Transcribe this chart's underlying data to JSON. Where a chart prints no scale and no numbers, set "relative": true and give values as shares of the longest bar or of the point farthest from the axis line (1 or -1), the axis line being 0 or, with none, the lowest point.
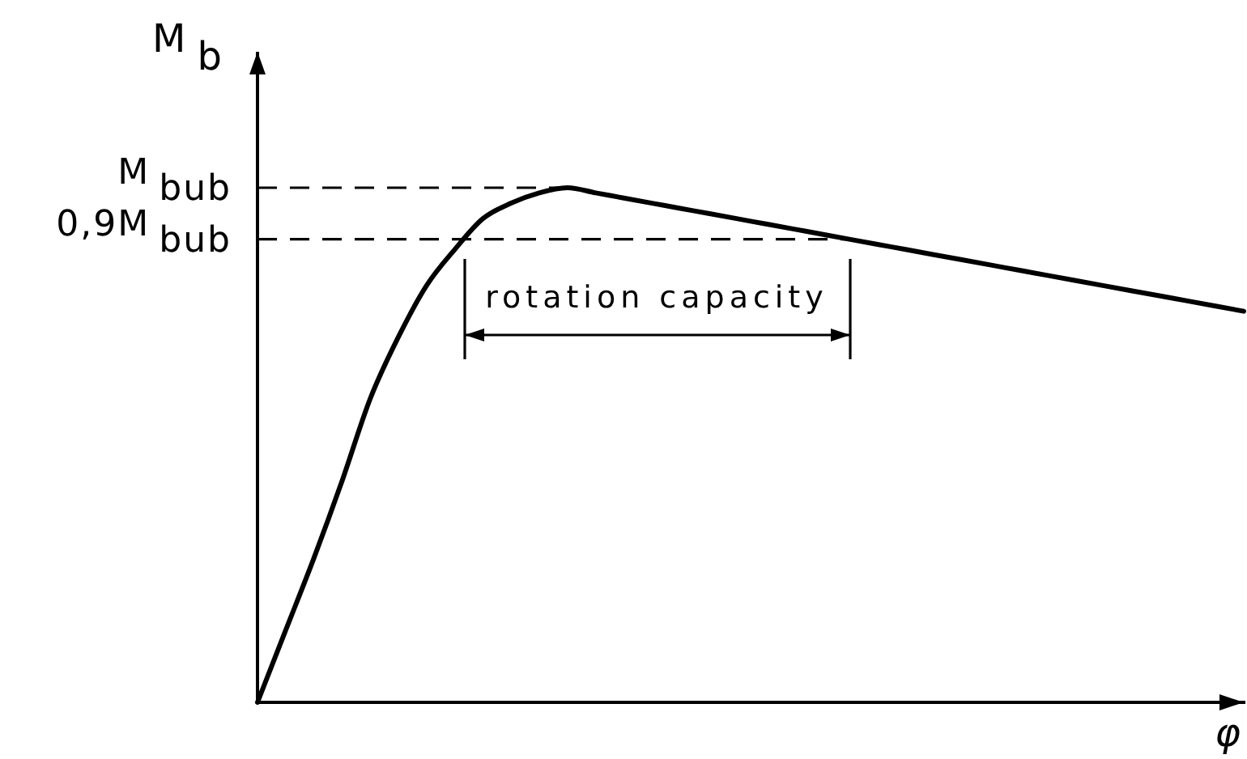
{
  "chart_data": {
    "type": "line",
    "relative": true,
    "xlabel": "φ",
    "ylabel": "M$_{b}$",
    "categories": [
      null,
      null,
      null,
      null,
      null,
      null,
      null,
      null,
      null,
      null,
      null,
      null,
      null,
      null,
      null,
      null,
      null,
      null,
      null,
      null,
      null,
      null,
      null,
      null,
      null,
      null,
      null,
      null,
      null,
      null,
      null,
      null,
      null,
      null,
      null,
      null
    ],
    "values": [
      0,
      0.14,
      0.28,
      0.43,
      0.59,
      0.71,
      0.81,
      0.88,
      0.94,
      0.97,
      0.99,
      1,
      0.99,
      0.98,
      0.97,
      0.96,
      0.95,
      0.94,
      0.93,
      0.92,
      0.91,
      0.9,
      0.89,
      0.88,
      0.87,
      0.86,
      0.85,
      0.84,
      0.83,
      0.82,
      0.81,
      0.8,
      0.79,
      0.78,
      0.77,
      0.76
    ],
    "color": "#000000",
    "ref_lines": [
      {
        "axis": "y",
        "value": 1,
        "label": "M$_{bub}$",
        "line_style": "dashed"
      },
      {
        "axis": "y",
        "value": 0.9,
        "label": "0,9M$_{bub}$",
        "line_style": "dashed"
      }
    ],
    "annotations": [
      "rotation capacity"
    ]
  }
}
